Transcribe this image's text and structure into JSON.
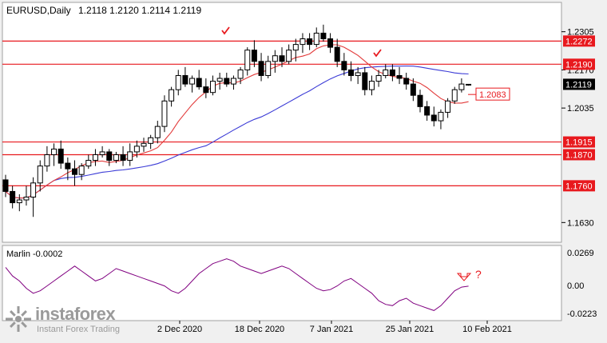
{
  "header": {
    "symbol": "EURUSD,Daily",
    "ohlc": "1.2118 1.2120 1.2114 1.2119"
  },
  "indicator": {
    "label": "Marlin -0.0002",
    "scale": [
      "0.0269",
      "0.00",
      "-0.0223"
    ]
  },
  "watermark": {
    "brand": "instaforex",
    "sub": "Instant Forex Trading",
    "icon": "instaforex-logo-icon"
  },
  "annotations": {
    "question_mark": "?",
    "check_marks": 2,
    "down_arrow": "down-arrow-icon"
  },
  "colors": {
    "level_line": "#e8191e",
    "ma_red": "#e23a3a",
    "ma_blue": "#3b3bd6",
    "marlin": "#800080",
    "candle": "#000000"
  },
  "chart_data": {
    "type": "candlestick",
    "y_axis_labels": [
      "1.2305",
      "1.2170",
      "1.2035",
      "1.1630"
    ],
    "y_range": [
      1.158,
      1.2355
    ],
    "x_tick_labels": [
      "2 Dec 2020",
      "18 Dec 2020",
      "7 Jan 2021",
      "25 Jan 2021",
      "10 Feb 2021"
    ],
    "price_levels": [
      {
        "label": "1.2272",
        "value": 1.2272
      },
      {
        "label": "1.2190",
        "value": 1.219
      },
      {
        "label": "1.1915",
        "value": 1.1915
      },
      {
        "label": "1.1870",
        "value": 1.187
      },
      {
        "label": "1.1760",
        "value": 1.176
      }
    ],
    "current_price": {
      "label": "1.2119",
      "value": 1.2119
    },
    "blue_ma_tag": {
      "label": "1.2083",
      "value": 1.2083
    },
    "candles": [
      [
        1.1781,
        1.1799,
        1.172,
        1.174
      ],
      [
        1.174,
        1.176,
        1.168,
        1.17
      ],
      [
        1.17,
        1.173,
        1.167,
        1.171
      ],
      [
        1.171,
        1.176,
        1.169,
        1.172
      ],
      [
        1.172,
        1.179,
        1.165,
        1.177
      ],
      [
        1.177,
        1.185,
        1.174,
        1.183
      ],
      [
        1.183,
        1.19,
        1.181,
        1.187
      ],
      [
        1.187,
        1.191,
        1.183,
        1.189
      ],
      [
        1.189,
        1.192,
        1.182,
        1.184
      ],
      [
        1.184,
        1.186,
        1.178,
        1.182
      ],
      [
        1.182,
        1.185,
        1.176,
        1.18
      ],
      [
        1.18,
        1.184,
        1.178,
        1.183
      ],
      [
        1.183,
        1.187,
        1.182,
        1.185
      ],
      [
        1.185,
        1.189,
        1.183,
        1.187
      ],
      [
        1.187,
        1.19,
        1.186,
        1.188
      ],
      [
        1.188,
        1.189,
        1.183,
        1.185
      ],
      [
        1.185,
        1.188,
        1.184,
        1.187
      ],
      [
        1.187,
        1.19,
        1.183,
        1.185
      ],
      [
        1.185,
        1.191,
        1.183,
        1.188
      ],
      [
        1.188,
        1.192,
        1.186,
        1.19
      ],
      [
        1.19,
        1.193,
        1.188,
        1.191
      ],
      [
        1.191,
        1.194,
        1.189,
        1.193
      ],
      [
        1.193,
        1.199,
        1.191,
        1.197
      ],
      [
        1.197,
        1.208,
        1.195,
        1.206
      ],
      [
        1.206,
        1.211,
        1.204,
        1.21
      ],
      [
        1.21,
        1.217,
        1.208,
        1.215
      ],
      [
        1.215,
        1.218,
        1.211,
        1.212
      ],
      [
        1.212,
        1.215,
        1.209,
        1.214
      ],
      [
        1.214,
        1.217,
        1.21,
        1.211
      ],
      [
        1.211,
        1.214,
        1.207,
        1.209
      ],
      [
        1.209,
        1.215,
        1.208,
        1.213
      ],
      [
        1.213,
        1.216,
        1.21,
        1.214
      ],
      [
        1.214,
        1.216,
        1.211,
        1.212
      ],
      [
        1.212,
        1.215,
        1.21,
        1.214
      ],
      [
        1.214,
        1.218,
        1.212,
        1.217
      ],
      [
        1.217,
        1.225,
        1.215,
        1.224
      ],
      [
        1.224,
        1.2275,
        1.218,
        1.22
      ],
      [
        1.22,
        1.223,
        1.213,
        1.215
      ],
      [
        1.215,
        1.222,
        1.214,
        1.22
      ],
      [
        1.22,
        1.224,
        1.216,
        1.222
      ],
      [
        1.222,
        1.225,
        1.218,
        1.22
      ],
      [
        1.22,
        1.226,
        1.219,
        1.224
      ],
      [
        1.224,
        1.228,
        1.22,
        1.226
      ],
      [
        1.226,
        1.23,
        1.223,
        1.228
      ],
      [
        1.228,
        1.23,
        1.224,
        1.226
      ],
      [
        1.226,
        1.232,
        1.225,
        1.23
      ],
      [
        1.23,
        1.233,
        1.227,
        1.228
      ],
      [
        1.228,
        1.23,
        1.223,
        1.225
      ],
      [
        1.225,
        1.228,
        1.218,
        1.22
      ],
      [
        1.22,
        1.223,
        1.215,
        1.217
      ],
      [
        1.217,
        1.22,
        1.213,
        1.215
      ],
      [
        1.215,
        1.218,
        1.212,
        1.216
      ],
      [
        1.216,
        1.218,
        1.208,
        1.21
      ],
      [
        1.21,
        1.215,
        1.208,
        1.213
      ],
      [
        1.213,
        1.217,
        1.211,
        1.215
      ],
      [
        1.215,
        1.219,
        1.214,
        1.217
      ],
      [
        1.217,
        1.219,
        1.213,
        1.215
      ],
      [
        1.215,
        1.218,
        1.212,
        1.214
      ],
      [
        1.214,
        1.216,
        1.21,
        1.212
      ],
      [
        1.212,
        1.214,
        1.206,
        1.208
      ],
      [
        1.208,
        1.21,
        1.202,
        1.204
      ],
      [
        1.204,
        1.206,
        1.199,
        1.201
      ],
      [
        1.201,
        1.204,
        1.197,
        1.199
      ],
      [
        1.199,
        1.203,
        1.196,
        1.202
      ],
      [
        1.202,
        1.207,
        1.2,
        1.206
      ],
      [
        1.206,
        1.211,
        1.205,
        1.21
      ],
      [
        1.21,
        1.214,
        1.209,
        1.212
      ],
      [
        1.2118,
        1.212,
        1.2114,
        1.2119
      ]
    ],
    "marlin": [
      0.015,
      0.008,
      0.004,
      -0.002,
      -0.006,
      -0.004,
      0.0,
      0.004,
      0.008,
      0.012,
      0.016,
      0.012,
      0.008,
      0.004,
      0.006,
      0.01,
      0.014,
      0.012,
      0.01,
      0.008,
      0.006,
      0.004,
      0.002,
      0.0,
      -0.004,
      -0.006,
      -0.002,
      0.004,
      0.01,
      0.014,
      0.018,
      0.02,
      0.022,
      0.02,
      0.016,
      0.014,
      0.012,
      0.01,
      0.012,
      0.014,
      0.016,
      0.014,
      0.01,
      0.006,
      0.002,
      -0.002,
      -0.004,
      -0.003,
      0.0,
      0.004,
      0.006,
      0.002,
      -0.002,
      -0.006,
      -0.012,
      -0.015,
      -0.016,
      -0.012,
      -0.01,
      -0.014,
      -0.016,
      -0.018,
      -0.02,
      -0.016,
      -0.01,
      -0.004,
      -0.001,
      -0.0002
    ]
  }
}
